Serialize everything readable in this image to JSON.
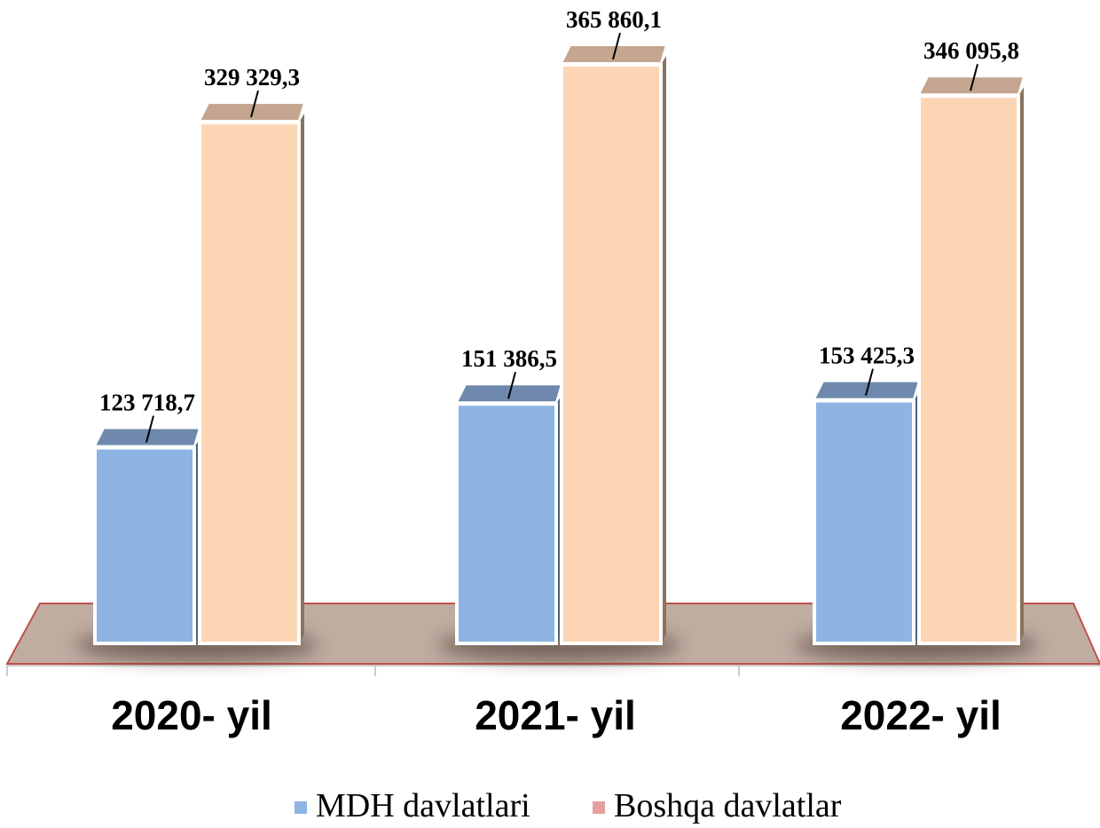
{
  "chart_data": {
    "type": "bar",
    "categories": [
      "2020- yil",
      "2021- yil",
      "2022- yil"
    ],
    "series": [
      {
        "name": "MDH davlatlari",
        "values": [
          123718.7,
          151386.5,
          153425.3
        ],
        "labels": [
          "123 718,7",
          "151 386,5",
          "153 425,3"
        ],
        "color": "#8db4e3"
      },
      {
        "name": "Boshqa davlatlar",
        "values": [
          329329.3,
          365860.1,
          346095.8
        ],
        "labels": [
          "329 329,3",
          "365 860,1",
          "346 095,8"
        ],
        "color": "#fcd5b4"
      }
    ],
    "legend_colors": [
      "#8db4e3",
      "#e6a0a0"
    ],
    "ylim": [
      0,
      390000
    ],
    "legend_position": "bottom",
    "grid": false
  }
}
